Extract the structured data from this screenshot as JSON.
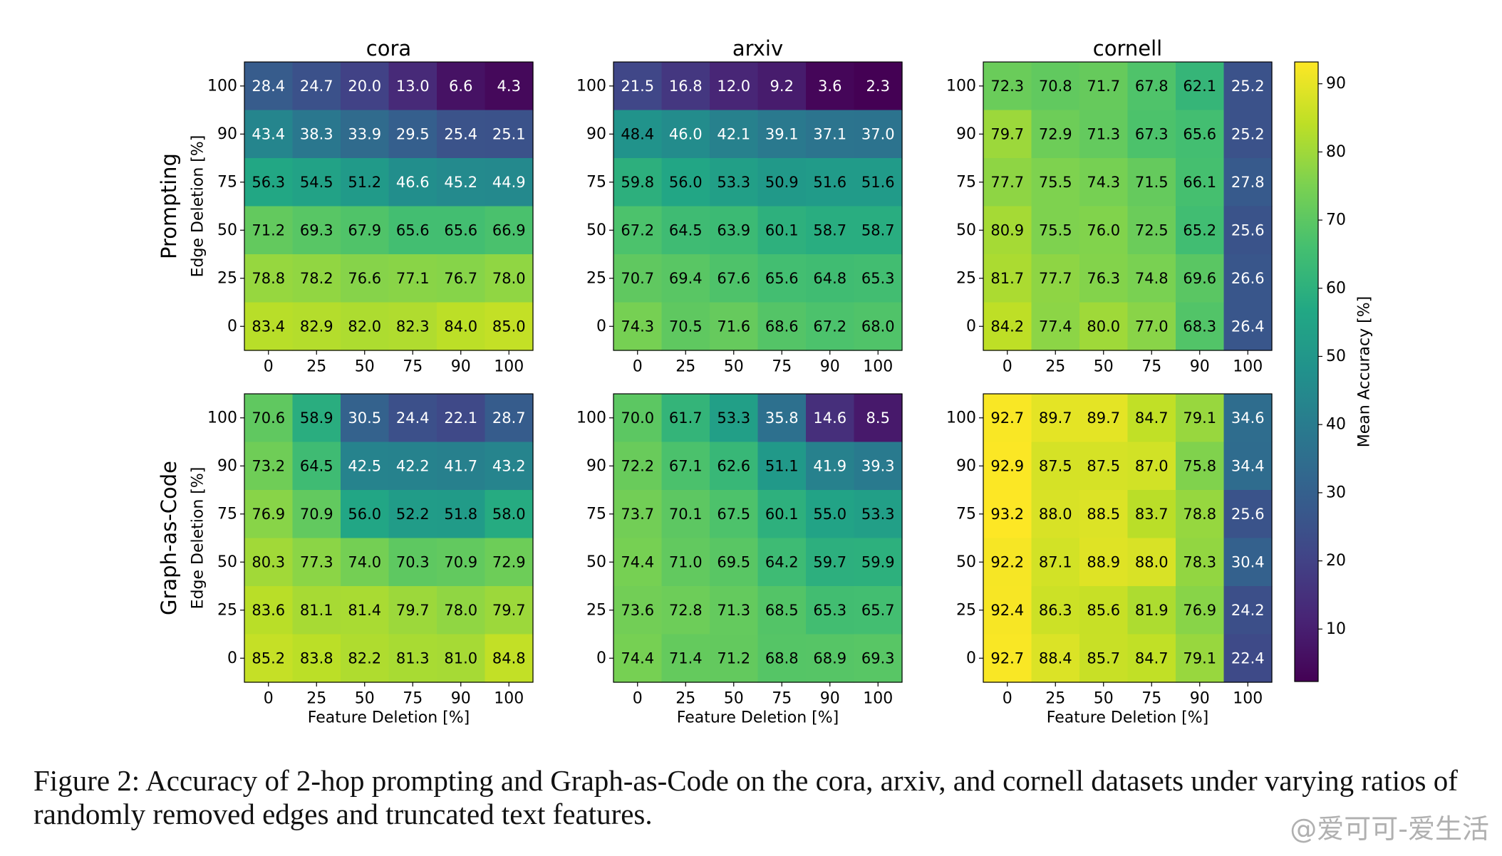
{
  "chart_data": {
    "type": "heatmap",
    "x_ticks": [
      "0",
      "25",
      "50",
      "75",
      "90",
      "100"
    ],
    "y_ticks": [
      "100",
      "90",
      "75",
      "50",
      "25",
      "0"
    ],
    "xlabel": "Feature Deletion [%]",
    "ylabel": "Edge Deletion [%]",
    "row_titles": [
      "Prompting",
      "Graph-as-Code"
    ],
    "col_titles": [
      "cora",
      "arxiv",
      "cornell"
    ],
    "colorbar": {
      "label": "Mean Accuracy [%]",
      "ticks": [
        10,
        20,
        30,
        40,
        50,
        60,
        70,
        80,
        90
      ],
      "range": [
        2.3,
        93.2
      ],
      "colormap": "viridis"
    },
    "panels": [
      {
        "row": 0,
        "col": 0,
        "values": [
          [
            28.4,
            24.7,
            20.0,
            13.0,
            6.6,
            4.3
          ],
          [
            43.4,
            38.3,
            33.9,
            29.5,
            25.4,
            25.1
          ],
          [
            56.3,
            54.5,
            51.2,
            46.6,
            45.2,
            44.9
          ],
          [
            71.2,
            69.3,
            67.9,
            65.6,
            65.6,
            66.9
          ],
          [
            78.8,
            78.2,
            76.6,
            77.1,
            76.7,
            78.0
          ],
          [
            83.4,
            82.9,
            82.0,
            82.3,
            84.0,
            85.0
          ]
        ]
      },
      {
        "row": 0,
        "col": 1,
        "values": [
          [
            21.5,
            16.8,
            12.0,
            9.2,
            3.6,
            2.3
          ],
          [
            48.4,
            46.0,
            42.1,
            39.1,
            37.1,
            37.0
          ],
          [
            59.8,
            56.0,
            53.3,
            50.9,
            51.6,
            51.6
          ],
          [
            67.2,
            64.5,
            63.9,
            60.1,
            58.7,
            58.7
          ],
          [
            70.7,
            69.4,
            67.6,
            65.6,
            64.8,
            65.3
          ],
          [
            74.3,
            70.5,
            71.6,
            68.6,
            67.2,
            68.0
          ]
        ]
      },
      {
        "row": 0,
        "col": 2,
        "values": [
          [
            72.3,
            70.8,
            71.7,
            67.8,
            62.1,
            25.2
          ],
          [
            79.7,
            72.9,
            71.3,
            67.3,
            65.6,
            25.2
          ],
          [
            77.7,
            75.5,
            74.3,
            71.5,
            66.1,
            27.8
          ],
          [
            80.9,
            75.5,
            76.0,
            72.5,
            65.2,
            25.6
          ],
          [
            81.7,
            77.7,
            76.3,
            74.8,
            69.6,
            26.6
          ],
          [
            84.2,
            77.4,
            80.0,
            77.0,
            68.3,
            26.4
          ]
        ]
      },
      {
        "row": 1,
        "col": 0,
        "values": [
          [
            70.6,
            58.9,
            30.5,
            24.4,
            22.1,
            28.7
          ],
          [
            73.2,
            64.5,
            42.5,
            42.2,
            41.7,
            43.2
          ],
          [
            76.9,
            70.9,
            56.0,
            52.2,
            51.8,
            58.0
          ],
          [
            80.3,
            77.3,
            74.0,
            70.3,
            70.9,
            72.9
          ],
          [
            83.6,
            81.1,
            81.4,
            79.7,
            78.0,
            79.7
          ],
          [
            85.2,
            83.8,
            82.2,
            81.3,
            81.0,
            84.8
          ]
        ]
      },
      {
        "row": 1,
        "col": 1,
        "values": [
          [
            70.0,
            61.7,
            53.3,
            35.8,
            14.6,
            8.5
          ],
          [
            72.2,
            67.1,
            62.6,
            51.1,
            41.9,
            39.3
          ],
          [
            73.7,
            70.1,
            67.5,
            60.1,
            55.0,
            53.3
          ],
          [
            74.4,
            71.0,
            69.5,
            64.2,
            59.7,
            59.9
          ],
          [
            73.6,
            72.8,
            71.3,
            68.5,
            65.3,
            65.7
          ],
          [
            74.4,
            71.4,
            71.2,
            68.8,
            68.9,
            69.3
          ]
        ]
      },
      {
        "row": 1,
        "col": 2,
        "values": [
          [
            92.7,
            89.7,
            89.7,
            84.7,
            79.1,
            34.6
          ],
          [
            92.9,
            87.5,
            87.5,
            87.0,
            75.8,
            34.4
          ],
          [
            93.2,
            88.0,
            88.5,
            83.7,
            78.8,
            25.6
          ],
          [
            92.2,
            87.1,
            88.9,
            88.0,
            78.3,
            30.4
          ],
          [
            92.4,
            86.3,
            85.6,
            81.9,
            76.9,
            24.2
          ],
          [
            92.7,
            88.4,
            85.7,
            84.7,
            79.1,
            22.4
          ]
        ]
      }
    ]
  },
  "caption": "Figure 2: Accuracy of 2-hop prompting and Graph-as-Code on the cora, arxiv, and cornell datasets under varying ratios of randomly removed edges and truncated text features.",
  "watermark": "@爱可可-爱生活"
}
